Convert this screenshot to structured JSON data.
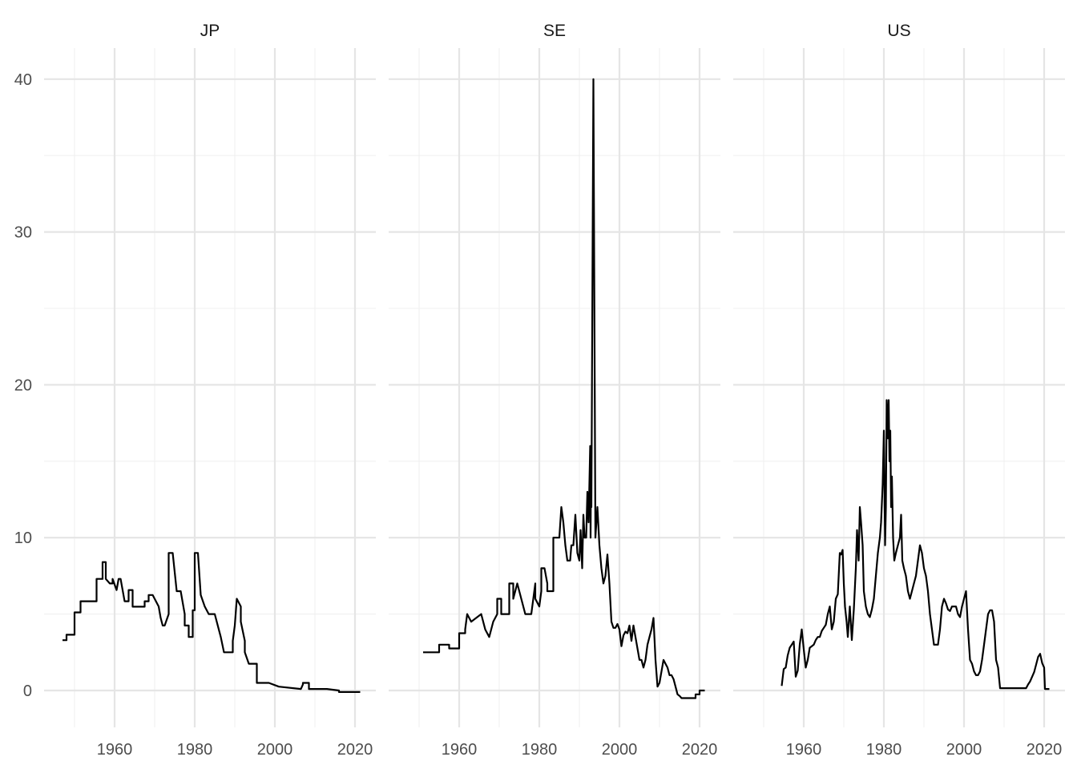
{
  "chart_data": {
    "type": "line",
    "title": "",
    "xlabel": "",
    "ylabel": "",
    "x_ticks": [
      1960,
      1980,
      2000,
      2020
    ],
    "y_ticks": [
      0,
      10,
      20,
      30,
      40
    ],
    "xlim": [
      1945,
      2024
    ],
    "ylim": [
      -2,
      42
    ],
    "grid": true,
    "panels": [
      {
        "label": "JP",
        "x": [
          1947.0,
          1948.0,
          1948.0,
          1950.0,
          1950.0,
          1951.0,
          1951.5,
          1951.5,
          1954.0,
          1954.0,
          1955.5,
          1955.5,
          1957.0,
          1957.0,
          1957.8,
          1957.8,
          1958.8,
          1959.5,
          1959.5,
          1960.5,
          1961.0,
          1961.5,
          1962.0,
          1962.5,
          1963.5,
          1963.5,
          1964.5,
          1964.5,
          1965.5,
          1965.5,
          1967.5,
          1967.5,
          1968.5,
          1968.5,
          1969.5,
          1969.5,
          1971.0,
          1971.5,
          1972.0,
          1972.5,
          1972.5,
          1973.5,
          1973.5,
          1974.5,
          1974.5,
          1975.5,
          1976.5,
          1976.5,
          1977.5,
          1977.5,
          1978.5,
          1978.5,
          1979.5,
          1979.5,
          1980.0,
          1980.0,
          1980.8,
          1981.5,
          1981.5,
          1982.5,
          1982.5,
          1983.5,
          1983.5,
          1985.0,
          1985.0,
          1986.5,
          1986.5,
          1987.3,
          1987.3,
          1989.5,
          1989.5,
          1990.0,
          1990.5,
          1990.5,
          1991.5,
          1991.5,
          1992.5,
          1992.5,
          1993.5,
          1993.5,
          1995.5,
          1995.5,
          1998.5,
          1998.5,
          2001.0,
          2001.0,
          2006.5,
          2006.5,
          2007.0,
          2007.0,
          2008.5,
          2008.5,
          2013.0,
          2016.0,
          2016.0,
          2021.3
        ],
        "y": [
          3.29,
          3.29,
          3.65,
          3.65,
          5.11,
          5.11,
          5.11,
          5.84,
          5.84,
          5.84,
          5.84,
          7.3,
          7.3,
          8.4,
          8.4,
          7.3,
          7.0,
          7.0,
          7.3,
          6.57,
          7.3,
          7.3,
          6.57,
          5.84,
          5.84,
          6.57,
          6.57,
          5.48,
          5.48,
          5.48,
          5.48,
          5.84,
          5.84,
          6.25,
          6.25,
          6.25,
          5.5,
          4.75,
          4.25,
          4.25,
          4.25,
          5.0,
          9.0,
          9.0,
          9.0,
          6.5,
          6.5,
          6.5,
          5.0,
          4.25,
          4.25,
          3.5,
          3.5,
          5.25,
          5.25,
          9.0,
          9.0,
          6.25,
          6.25,
          5.5,
          5.5,
          5.0,
          5.0,
          5.0,
          5.0,
          3.5,
          3.5,
          2.5,
          2.5,
          2.5,
          3.25,
          4.25,
          6.0,
          6.0,
          5.5,
          4.5,
          3.25,
          2.5,
          1.75,
          1.75,
          1.75,
          0.5,
          0.5,
          0.5,
          0.25,
          0.25,
          0.1,
          0.1,
          0.4,
          0.5,
          0.5,
          0.1,
          0.1,
          0.0,
          -0.1,
          -0.1
        ]
      },
      {
        "label": "SE",
        "x": [
          1951.0,
          1955.0,
          1955.0,
          1957.5,
          1957.5,
          1960.0,
          1960.0,
          1961.5,
          1961.5,
          1962.0,
          1963.0,
          1963.0,
          1965.5,
          1965.5,
          1966.5,
          1967.5,
          1968.5,
          1969.5,
          1969.5,
          1970.5,
          1970.5,
          1971.5,
          1971.5,
          1972.5,
          1972.5,
          1973.5,
          1973.5,
          1974.5,
          1974.5,
          1976.5,
          1976.5,
          1978.0,
          1978.5,
          1979.0,
          1979.0,
          1980.0,
          1980.5,
          1980.5,
          1981.0,
          1981.3,
          1982.0,
          1982.0,
          1983.5,
          1983.5,
          1985.0,
          1985.5,
          1986.0,
          1986.5,
          1987.0,
          1987.3,
          1987.7,
          1988.0,
          1988.5,
          1989.0,
          1989.5,
          1990.0,
          1990.3,
          1990.7,
          1991.0,
          1991.3,
          1991.7,
          1992.0,
          1992.3,
          1992.7,
          1992.8,
          1992.9,
          1993.0,
          1993.5,
          1994.0,
          1994.5,
          1995.0,
          1995.5,
          1996.0,
          1996.5,
          1997.0,
          1997.5,
          1998.0,
          1998.5,
          1999.0,
          1999.5,
          2000.0,
          2000.5,
          2001.0,
          2001.5,
          2002.0,
          2002.5,
          2003.0,
          2003.5,
          2004.0,
          2004.5,
          2005.0,
          2005.5,
          2006.0,
          2006.5,
          2007.0,
          2007.5,
          2008.0,
          2008.5,
          2009.0,
          2009.5,
          2010.0,
          2010.5,
          2011.0,
          2011.5,
          2012.0,
          2012.5,
          2013.0,
          2013.5,
          2014.0,
          2014.5,
          2015.0,
          2015.5,
          2016.0,
          2019.0,
          2019.0,
          2020.0,
          2020.0,
          2021.3
        ],
        "y": [
          2.5,
          2.5,
          3.0,
          3.0,
          2.75,
          2.75,
          3.75,
          3.75,
          4.0,
          5.0,
          4.5,
          4.5,
          5.0,
          5.0,
          4.0,
          3.5,
          4.5,
          5.0,
          6.0,
          6.0,
          5.0,
          5.0,
          5.0,
          5.0,
          7.0,
          7.0,
          6.0,
          7.0,
          7.0,
          5.0,
          5.0,
          5.0,
          6.0,
          7.0,
          6.0,
          5.5,
          6.5,
          8.0,
          8.0,
          8.0,
          7.0,
          6.5,
          6.5,
          10.0,
          10.0,
          12.0,
          11.0,
          9.5,
          8.5,
          8.5,
          8.5,
          9.5,
          9.5,
          11.5,
          9.0,
          8.5,
          10.5,
          8.0,
          11.5,
          10.0,
          10.0,
          13.0,
          11.0,
          16.0,
          10.0,
          14.5,
          12.0,
          40.0,
          10.0,
          12.0,
          9.5,
          8.0,
          7.0,
          7.5,
          8.9,
          7.0,
          4.5,
          4.1,
          4.1,
          4.35,
          4.0,
          2.9,
          3.6,
          3.85,
          3.75,
          4.25,
          3.25,
          4.25,
          3.5,
          2.75,
          2.0,
          2.0,
          1.5,
          2.0,
          3.0,
          3.5,
          4.0,
          4.75,
          2.0,
          0.25,
          0.5,
          1.25,
          2.0,
          1.75,
          1.5,
          1.0,
          1.0,
          0.75,
          0.25,
          -0.25,
          -0.35,
          -0.5,
          -0.5,
          -0.5,
          -0.25,
          -0.25,
          0.0,
          0.0
        ]
      },
      {
        "label": "US",
        "x": [
          1954.5,
          1955.0,
          1955.5,
          1956.0,
          1956.5,
          1957.0,
          1957.5,
          1958.0,
          1958.5,
          1959.0,
          1959.5,
          1960.0,
          1960.5,
          1961.0,
          1961.5,
          1962.0,
          1962.5,
          1963.0,
          1963.5,
          1964.0,
          1964.5,
          1965.0,
          1965.5,
          1966.0,
          1966.5,
          1967.0,
          1967.5,
          1968.0,
          1968.5,
          1969.0,
          1969.3,
          1969.7,
          1970.0,
          1970.3,
          1970.7,
          1971.0,
          1971.5,
          1972.0,
          1972.5,
          1973.0,
          1973.3,
          1973.7,
          1974.0,
          1974.3,
          1974.7,
          1975.0,
          1975.5,
          1976.0,
          1976.5,
          1977.0,
          1977.5,
          1978.0,
          1978.5,
          1979.0,
          1979.3,
          1979.7,
          1980.0,
          1980.3,
          1980.5,
          1980.7,
          1981.0,
          1981.2,
          1981.4,
          1981.6,
          1981.8,
          1982.0,
          1982.3,
          1982.6,
          1983.0,
          1983.5,
          1984.0,
          1984.3,
          1984.6,
          1985.0,
          1985.5,
          1986.0,
          1986.5,
          1987.0,
          1987.5,
          1988.0,
          1988.5,
          1989.0,
          1989.5,
          1990.0,
          1990.5,
          1991.0,
          1991.5,
          1992.0,
          1992.5,
          1993.0,
          1993.5,
          1994.0,
          1994.5,
          1995.0,
          1995.5,
          1996.0,
          1996.5,
          1997.0,
          1997.5,
          1998.0,
          1998.5,
          1999.0,
          1999.5,
          2000.0,
          2000.5,
          2001.0,
          2001.5,
          2002.0,
          2002.5,
          2003.0,
          2003.5,
          2004.0,
          2004.5,
          2005.0,
          2005.5,
          2006.0,
          2006.5,
          2007.0,
          2007.5,
          2008.0,
          2008.5,
          2009.0,
          2015.5,
          2016.0,
          2016.5,
          2017.0,
          2017.5,
          2018.0,
          2018.5,
          2019.0,
          2019.5,
          2020.0,
          2020.2,
          2021.3
        ],
        "y": [
          0.3,
          1.4,
          1.5,
          2.3,
          2.8,
          3.0,
          3.2,
          0.9,
          1.3,
          3.0,
          4.0,
          2.7,
          1.5,
          2.0,
          2.8,
          2.9,
          3.0,
          3.3,
          3.5,
          3.5,
          3.9,
          4.1,
          4.3,
          5.0,
          5.5,
          4.0,
          4.5,
          6.0,
          6.3,
          9.0,
          8.9,
          9.2,
          7.0,
          5.5,
          4.5,
          3.5,
          5.5,
          3.3,
          5.3,
          8.0,
          10.5,
          8.5,
          12.0,
          11.0,
          9.5,
          6.5,
          5.5,
          5.0,
          4.8,
          5.3,
          6.0,
          7.5,
          9.0,
          10.0,
          11.0,
          13.5,
          17.0,
          9.5,
          12.0,
          19.0,
          16.5,
          19.0,
          15.0,
          17.0,
          12.0,
          14.0,
          10.0,
          8.5,
          9.0,
          9.5,
          10.0,
          11.5,
          8.5,
          8.0,
          7.5,
          6.5,
          6.0,
          6.5,
          7.0,
          7.5,
          8.5,
          9.5,
          9.0,
          8.0,
          7.5,
          6.5,
          5.0,
          4.0,
          3.0,
          3.0,
          3.0,
          4.0,
          5.5,
          6.0,
          5.7,
          5.3,
          5.2,
          5.5,
          5.5,
          5.5,
          5.0,
          4.8,
          5.5,
          6.0,
          6.5,
          4.0,
          2.0,
          1.75,
          1.25,
          1.0,
          1.0,
          1.25,
          2.0,
          3.0,
          4.0,
          5.0,
          5.25,
          5.25,
          4.5,
          2.0,
          1.5,
          0.15,
          0.15,
          0.4,
          0.6,
          0.9,
          1.2,
          1.7,
          2.2,
          2.4,
          1.8,
          1.5,
          0.1,
          0.1
        ]
      }
    ]
  }
}
